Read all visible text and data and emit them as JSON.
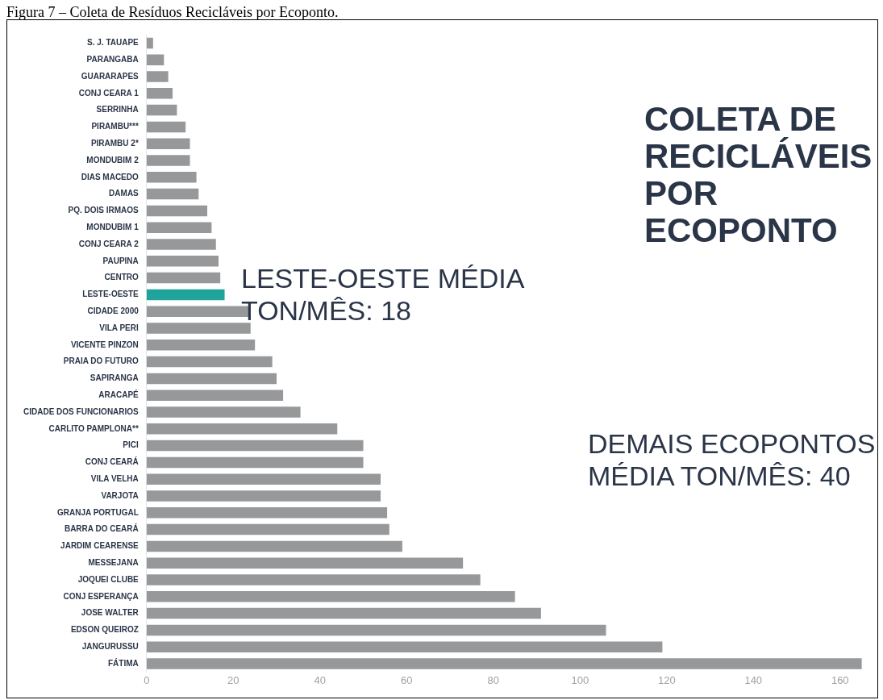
{
  "chart_data": {
    "type": "bar",
    "orientation": "horizontal",
    "title": "COLETA DE RECICLÁVEIS POR ECOPONTO",
    "categories": [
      "S. J. TAUAPE",
      "PARANGABA",
      "GUARARAPES",
      "CONJ CEARA 1",
      "SERRINHA",
      "PIRAMBU***",
      "PIRAMBU 2*",
      "MONDUBIM 2",
      "DIAS MACEDO",
      "DAMAS",
      "PQ. DOIS IRMAOS",
      "MONDUBIM 1",
      "CONJ CEARA 2",
      "PAUPINA",
      "CENTRO",
      "LESTE-OESTE",
      "CIDADE 2000",
      "VILA PERI",
      "VICENTE PINZON",
      "PRAIA DO FUTURO",
      "SAPIRANGA",
      "ARACAPÉ",
      "CIDADE DOS FUNCIONARIOS",
      "CARLITO PAMPLONA**",
      "PICI",
      "CONJ CEARÁ",
      "VILA VELHA",
      "VARJOTA",
      "GRANJA PORTUGAL",
      "BARRA DO CEARÁ",
      "JARDIM CEARENSE",
      "MESSEJANA",
      "JOQUEI CLUBE",
      "CONJ ESPERANÇA",
      "JOSE WALTER",
      "EDSON QUEIROZ",
      "JANGURUSSU",
      "FÁTIMA"
    ],
    "values": [
      1.5,
      4,
      5,
      6,
      7,
      9,
      10,
      10,
      11.5,
      12,
      14,
      15,
      16,
      16.6,
      17,
      18,
      23.6,
      24,
      25,
      29,
      30,
      31.5,
      35.5,
      44,
      50,
      50,
      54,
      54,
      55.5,
      56,
      59,
      73,
      77,
      85,
      91,
      106,
      119,
      165
    ],
    "colors": [
      "#97989a",
      "#97989a",
      "#97989a",
      "#97989a",
      "#97989a",
      "#97989a",
      "#97989a",
      "#97989a",
      "#97989a",
      "#97989a",
      "#97989a",
      "#97989a",
      "#97989a",
      "#97989a",
      "#97989a",
      "#1fa39a",
      "#97989a",
      "#97989a",
      "#97989a",
      "#97989a",
      "#97989a",
      "#97989a",
      "#97989a",
      "#97989a",
      "#97989a",
      "#97989a",
      "#97989a",
      "#97989a",
      "#97989a",
      "#97989a",
      "#97989a",
      "#97989a",
      "#97989a",
      "#97989a",
      "#97989a",
      "#97989a",
      "#97989a",
      "#97989a"
    ],
    "xlim": [
      0,
      166
    ],
    "xticks": [
      0,
      20,
      40,
      60,
      80,
      100,
      120,
      140,
      160
    ],
    "grid": false,
    "legend": false,
    "annotations": [
      "Figura 7 – Coleta de Resíduos Recicláveis por Ecoponto.",
      "LESTE-OESTE MÉDIA TON/MÊS: 18",
      "DEMAIS ECOPONTOS MÉDIA TON/MÊS: 40"
    ]
  }
}
